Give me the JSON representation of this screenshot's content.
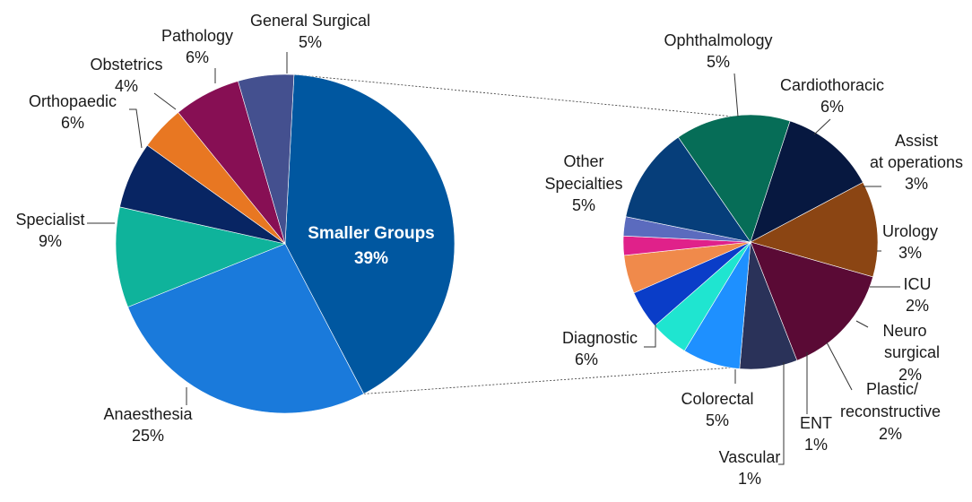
{
  "chart_data": {
    "type": "pie",
    "subtype": "pie-of-pie",
    "main_pie": {
      "slices": [
        {
          "label": "Smaller Groups",
          "pct_text": "39%",
          "value": 39,
          "color": "#0057A0"
        },
        {
          "label": "Anaesthesia",
          "pct_text": "25%",
          "value": 25,
          "color": "#1A7ADB"
        },
        {
          "label": "Specialist",
          "pct_text": "9%",
          "value": 9,
          "color": "#0FB39B"
        },
        {
          "label": "Orthopaedic",
          "pct_text": "6%",
          "value": 6,
          "color": "#082563"
        },
        {
          "label": "Obstetrics",
          "pct_text": "4%",
          "value": 4,
          "color": "#E87722"
        },
        {
          "label": "Pathology",
          "pct_text": "6%",
          "value": 6,
          "color": "#870F54"
        },
        {
          "label": "General Surgical",
          "pct_text": "5%",
          "value": 5,
          "color": "#44508F"
        }
      ]
    },
    "secondary_pie": {
      "slices": [
        {
          "label": "Ophthalmology",
          "pct_text": "5%",
          "value": 5,
          "color": "#8B4513"
        },
        {
          "label": "Cardiothoracic",
          "pct_text": "6%",
          "value": 6,
          "color": "#5A0A35"
        },
        {
          "label": "Assist at operations",
          "pct_text": "3%",
          "value": 3,
          "color": "#2A3259"
        },
        {
          "label": "Urology",
          "pct_text": "3%",
          "value": 3,
          "color": "#1E90FF"
        },
        {
          "label": "ICU",
          "pct_text": "2%",
          "value": 2,
          "color": "#1FE5D0"
        },
        {
          "label": "Neuro surgical",
          "pct_text": "2%",
          "value": 2,
          "color": "#0A3DC8"
        },
        {
          "label": "Plastic/ reconstructive",
          "pct_text": "2%",
          "value": 2,
          "color": "#F08A4B"
        },
        {
          "label": "ENT",
          "pct_text": "1%",
          "value": 1,
          "color": "#E0218A"
        },
        {
          "label": "Vascular",
          "pct_text": "1%",
          "value": 1,
          "color": "#5B6BBE"
        },
        {
          "label": "Colorectal",
          "pct_text": "5%",
          "value": 5,
          "color": "#063E7A"
        },
        {
          "label": "Diagnostic",
          "pct_text": "6%",
          "value": 6,
          "color": "#066D57"
        },
        {
          "label": "Other Specialties",
          "pct_text": "5%",
          "value": 5,
          "color": "#071840"
        }
      ]
    }
  }
}
